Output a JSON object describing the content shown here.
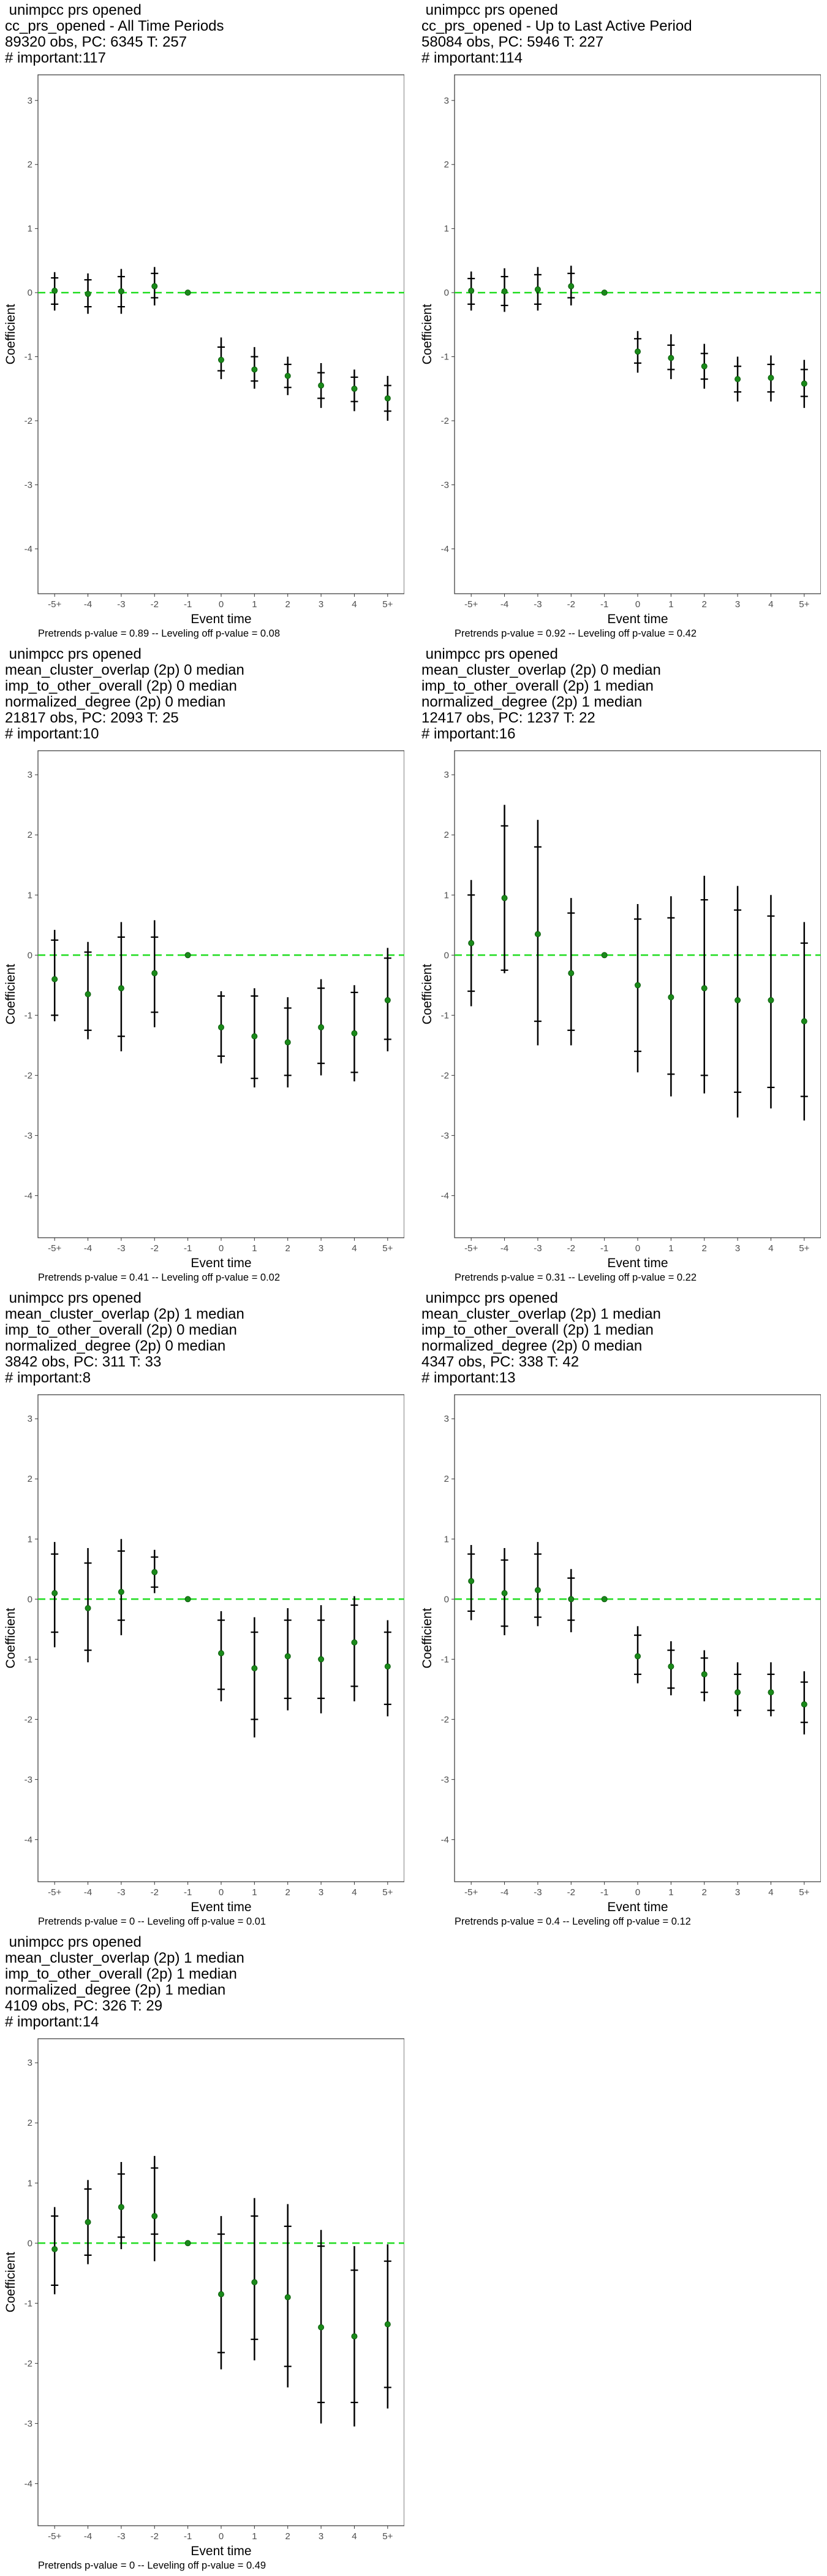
{
  "axis": {
    "xlabel": "Event time",
    "ylabel": "Coefficient",
    "x_ticks": [
      "-5+",
      "-4",
      "-3",
      "-2",
      "-1",
      "0",
      "1",
      "2",
      "3",
      "4",
      "5+"
    ],
    "y_ticks": [
      3,
      2,
      1,
      0,
      -1,
      -2,
      -3,
      -4
    ],
    "ylim": [
      -4.7,
      3.4
    ]
  },
  "colors": {
    "point": "#1a8a1a",
    "zero_line": "#22dd22",
    "bar": "#000000",
    "border": "#333333"
  },
  "chart_data": [
    {
      "type": "scatter",
      "title_lines": [
        " unimpcc prs opened",
        "cc_prs_opened - All Time Periods",
        "89320 obs, PC: 6345 T: 257",
        "# important:117"
      ],
      "footnote": "Pretrends p-value = 0.89 -- Leveling off p-value = 0.08",
      "x": [
        "-5+",
        "-4",
        "-3",
        "-2",
        "-1",
        "0",
        "1",
        "2",
        "3",
        "4",
        "5+"
      ],
      "y": [
        0.03,
        -0.02,
        0.02,
        0.1,
        0.0,
        -1.05,
        -1.2,
        -1.3,
        -1.45,
        -1.5,
        -1.65
      ],
      "outer": [
        [
          -0.28,
          0.32
        ],
        [
          -0.33,
          0.3
        ],
        [
          -0.33,
          0.37
        ],
        [
          -0.2,
          0.4
        ],
        null,
        [
          -1.35,
          -0.7
        ],
        [
          -1.5,
          -0.85
        ],
        [
          -1.6,
          -1.0
        ],
        [
          -1.8,
          -1.1
        ],
        [
          -1.85,
          -1.2
        ],
        [
          -2.0,
          -1.3
        ]
      ],
      "inner": [
        [
          -0.18,
          0.23
        ],
        [
          -0.22,
          0.2
        ],
        [
          -0.22,
          0.25
        ],
        [
          -0.08,
          0.3
        ],
        null,
        [
          -1.22,
          -0.85
        ],
        [
          -1.38,
          -1.0
        ],
        [
          -1.48,
          -1.12
        ],
        [
          -1.65,
          -1.25
        ],
        [
          -1.7,
          -1.32
        ],
        [
          -1.85,
          -1.45
        ]
      ]
    },
    {
      "type": "scatter",
      "title_lines": [
        " unimpcc prs opened",
        "cc_prs_opened - Up to Last Active Period",
        "58084 obs, PC: 5946 T: 227",
        "# important:114"
      ],
      "footnote": "Pretrends p-value = 0.92 -- Leveling off p-value = 0.42",
      "x": [
        "-5+",
        "-4",
        "-3",
        "-2",
        "-1",
        "0",
        "1",
        "2",
        "3",
        "4",
        "5+"
      ],
      "y": [
        0.03,
        0.02,
        0.05,
        0.1,
        0.0,
        -0.92,
        -1.02,
        -1.15,
        -1.35,
        -1.33,
        -1.42
      ],
      "outer": [
        [
          -0.28,
          0.33
        ],
        [
          -0.3,
          0.38
        ],
        [
          -0.28,
          0.4
        ],
        [
          -0.2,
          0.42
        ],
        null,
        [
          -1.25,
          -0.6
        ],
        [
          -1.35,
          -0.65
        ],
        [
          -1.5,
          -0.8
        ],
        [
          -1.7,
          -1.0
        ],
        [
          -1.7,
          -0.98
        ],
        [
          -1.8,
          -1.05
        ]
      ],
      "inner": [
        [
          -0.18,
          0.22
        ],
        [
          -0.2,
          0.25
        ],
        [
          -0.18,
          0.28
        ],
        [
          -0.08,
          0.3
        ],
        null,
        [
          -1.1,
          -0.72
        ],
        [
          -1.2,
          -0.82
        ],
        [
          -1.35,
          -0.95
        ],
        [
          -1.55,
          -1.15
        ],
        [
          -1.55,
          -1.12
        ],
        [
          -1.62,
          -1.2
        ]
      ]
    },
    {
      "type": "scatter",
      "title_lines": [
        " unimpcc prs opened",
        "mean_cluster_overlap (2p) 0 median",
        "imp_to_other_overall (2p) 0 median",
        "normalized_degree (2p) 0 median",
        "21817 obs, PC: 2093 T: 25",
        "# important:10"
      ],
      "footnote": "Pretrends p-value = 0.41 -- Leveling off p-value = 0.02",
      "x": [
        "-5+",
        "-4",
        "-3",
        "-2",
        "-1",
        "0",
        "1",
        "2",
        "3",
        "4",
        "5+"
      ],
      "y": [
        -0.4,
        -0.65,
        -0.55,
        -0.3,
        0.0,
        -1.2,
        -1.35,
        -1.45,
        -1.2,
        -1.3,
        -0.75
      ],
      "outer": [
        [
          -1.1,
          0.42
        ],
        [
          -1.4,
          0.22
        ],
        [
          -1.6,
          0.55
        ],
        [
          -1.2,
          0.58
        ],
        null,
        [
          -1.8,
          -0.6
        ],
        [
          -2.2,
          -0.55
        ],
        [
          -2.2,
          -0.7
        ],
        [
          -2.0,
          -0.4
        ],
        [
          -2.1,
          -0.5
        ],
        [
          -1.6,
          0.12
        ]
      ],
      "inner": [
        [
          -1.0,
          0.25
        ],
        [
          -1.25,
          0.05
        ],
        [
          -1.35,
          0.3
        ],
        [
          -0.95,
          0.3
        ],
        null,
        [
          -1.68,
          -0.68
        ],
        [
          -2.05,
          -0.68
        ],
        [
          -2.0,
          -0.88
        ],
        [
          -1.8,
          -0.55
        ],
        [
          -1.95,
          -0.62
        ],
        [
          -1.4,
          -0.05
        ]
      ]
    },
    {
      "type": "scatter",
      "title_lines": [
        " unimpcc prs opened",
        "mean_cluster_overlap (2p) 0 median",
        "imp_to_other_overall (2p) 1 median",
        "normalized_degree (2p) 1 median",
        "12417 obs, PC: 1237 T: 22",
        "# important:16"
      ],
      "footnote": "Pretrends p-value = 0.31 -- Leveling off p-value = 0.22",
      "x": [
        "-5+",
        "-4",
        "-3",
        "-2",
        "-1",
        "0",
        "1",
        "2",
        "3",
        "4",
        "5+"
      ],
      "y": [
        0.2,
        0.95,
        0.35,
        -0.3,
        0.0,
        -0.5,
        -0.7,
        -0.55,
        -0.75,
        -0.75,
        -1.1
      ],
      "outer": [
        [
          -0.85,
          1.25
        ],
        [
          -0.3,
          2.5
        ],
        [
          -1.5,
          2.25
        ],
        [
          -1.5,
          0.95
        ],
        null,
        [
          -1.95,
          0.85
        ],
        [
          -2.35,
          0.98
        ],
        [
          -2.3,
          1.32
        ],
        [
          -2.7,
          1.15
        ],
        [
          -2.55,
          1.0
        ],
        [
          -2.75,
          0.55
        ]
      ],
      "inner": [
        [
          -0.6,
          1.0
        ],
        [
          -0.25,
          2.15
        ],
        [
          -1.1,
          1.8
        ],
        [
          -1.25,
          0.7
        ],
        null,
        [
          -1.6,
          0.6
        ],
        [
          -1.98,
          0.62
        ],
        [
          -2.0,
          0.92
        ],
        [
          -2.28,
          0.75
        ],
        [
          -2.2,
          0.65
        ],
        [
          -2.35,
          0.2
        ]
      ]
    },
    {
      "type": "scatter",
      "title_lines": [
        " unimpcc prs opened",
        "mean_cluster_overlap (2p) 1 median",
        "imp_to_other_overall (2p) 0 median",
        "normalized_degree (2p) 0 median",
        "3842 obs, PC: 311 T: 33",
        "# important:8"
      ],
      "footnote": "Pretrends p-value = 0 -- Leveling off p-value = 0.01",
      "x": [
        "-5+",
        "-4",
        "-3",
        "-2",
        "-1",
        "0",
        "1",
        "2",
        "3",
        "4",
        "5+"
      ],
      "y": [
        0.1,
        -0.15,
        0.12,
        0.45,
        0.0,
        -0.9,
        -1.15,
        -0.95,
        -1.0,
        -0.72,
        -1.12
      ],
      "outer": [
        [
          -0.8,
          0.95
        ],
        [
          -1.05,
          0.85
        ],
        [
          -0.6,
          1.0
        ],
        [
          0.1,
          0.82
        ],
        null,
        [
          -1.7,
          -0.2
        ],
        [
          -2.3,
          -0.3
        ],
        [
          -1.85,
          -0.15
        ],
        [
          -1.9,
          -0.1
        ],
        [
          -1.7,
          0.05
        ],
        [
          -1.95,
          -0.35
        ]
      ],
      "inner": [
        [
          -0.55,
          0.75
        ],
        [
          -0.85,
          0.6
        ],
        [
          -0.35,
          0.8
        ],
        [
          0.2,
          0.7
        ],
        null,
        [
          -1.5,
          -0.35
        ],
        [
          -2.0,
          -0.55
        ],
        [
          -1.65,
          -0.35
        ],
        [
          -1.65,
          -0.35
        ],
        [
          -1.45,
          -0.1
        ],
        [
          -1.75,
          -0.55
        ]
      ]
    },
    {
      "type": "scatter",
      "title_lines": [
        " unimpcc prs opened",
        "mean_cluster_overlap (2p) 1 median",
        "imp_to_other_overall (2p) 1 median",
        "normalized_degree (2p) 0 median",
        "4347 obs, PC: 338 T: 42",
        "# important:13"
      ],
      "footnote": "Pretrends p-value = 0.4 -- Leveling off p-value = 0.12",
      "x": [
        "-5+",
        "-4",
        "-3",
        "-2",
        "-1",
        "0",
        "1",
        "2",
        "3",
        "4",
        "5+"
      ],
      "y": [
        0.3,
        0.1,
        0.15,
        0.0,
        0.0,
        -0.95,
        -1.12,
        -1.25,
        -1.55,
        -1.55,
        -1.75
      ],
      "outer": [
        [
          -0.35,
          0.9
        ],
        [
          -0.6,
          0.85
        ],
        [
          -0.45,
          0.95
        ],
        [
          -0.55,
          0.5
        ],
        null,
        [
          -1.4,
          -0.45
        ],
        [
          -1.6,
          -0.7
        ],
        [
          -1.7,
          -0.85
        ],
        [
          -1.95,
          -1.05
        ],
        [
          -1.95,
          -1.05
        ],
        [
          -2.25,
          -1.2
        ]
      ],
      "inner": [
        [
          -0.2,
          0.75
        ],
        [
          -0.45,
          0.65
        ],
        [
          -0.3,
          0.75
        ],
        [
          -0.35,
          0.35
        ],
        null,
        [
          -1.25,
          -0.6
        ],
        [
          -1.48,
          -0.85
        ],
        [
          -1.55,
          -0.98
        ],
        [
          -1.85,
          -1.25
        ],
        [
          -1.85,
          -1.25
        ],
        [
          -2.05,
          -1.38
        ]
      ]
    },
    {
      "type": "scatter",
      "title_lines": [
        " unimpcc prs opened",
        "mean_cluster_overlap (2p) 1 median",
        "imp_to_other_overall (2p) 1 median",
        "normalized_degree (2p) 1 median",
        "4109 obs, PC: 326 T: 29",
        "# important:14"
      ],
      "footnote": "Pretrends p-value = 0 -- Leveling off p-value = 0.49",
      "x": [
        "-5+",
        "-4",
        "-3",
        "-2",
        "-1",
        "0",
        "1",
        "2",
        "3",
        "4",
        "5+"
      ],
      "y": [
        -0.1,
        0.35,
        0.6,
        0.45,
        0.0,
        -0.85,
        -0.65,
        -0.9,
        -1.4,
        -1.55,
        -1.35
      ],
      "outer": [
        [
          -0.85,
          0.6
        ],
        [
          -0.35,
          1.05
        ],
        [
          -0.1,
          1.35
        ],
        [
          -0.3,
          1.45
        ],
        null,
        [
          -2.1,
          0.45
        ],
        [
          -1.95,
          0.75
        ],
        [
          -2.4,
          0.65
        ],
        [
          -3.0,
          0.22
        ],
        [
          -3.05,
          -0.05
        ],
        [
          -2.75,
          -0.02
        ]
      ],
      "inner": [
        [
          -0.7,
          0.45
        ],
        [
          -0.2,
          0.9
        ],
        [
          0.1,
          1.15
        ],
        [
          0.15,
          1.25
        ],
        null,
        [
          -1.82,
          0.15
        ],
        [
          -1.6,
          0.45
        ],
        [
          -2.05,
          0.28
        ],
        [
          -2.65,
          -0.05
        ],
        [
          -2.65,
          -0.45
        ],
        [
          -2.4,
          -0.3
        ]
      ]
    }
  ]
}
